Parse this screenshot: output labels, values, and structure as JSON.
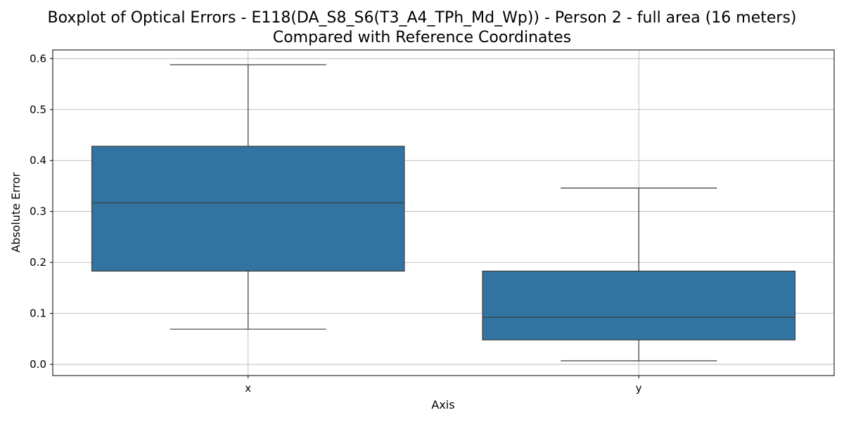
{
  "chart_data": {
    "type": "box",
    "title_lines": [
      "Boxplot of Optical Errors - E118(DA_S8_S6(T3_A4_TPh_Md_Wp)) - Person 2 - full area (16 meters)",
      "Compared with Reference Coordinates"
    ],
    "xlabel": "Axis",
    "ylabel": "Absolute Error",
    "categories": [
      "x",
      "y"
    ],
    "ylim": [
      -0.022,
      0.617
    ],
    "yticks": [
      0.0,
      0.1,
      0.2,
      0.3,
      0.4,
      0.5,
      0.6
    ],
    "ytick_labels": [
      "0.0",
      "0.1",
      "0.2",
      "0.3",
      "0.4",
      "0.5",
      "0.6"
    ],
    "grid": true,
    "box_color": "#3274a1",
    "line_color": "#3d3d3d",
    "boxes": [
      {
        "category": "x",
        "whisker_low": 0.069,
        "q1": 0.183,
        "median": 0.317,
        "q3": 0.428,
        "whisker_high": 0.588
      },
      {
        "category": "y",
        "whisker_low": 0.007,
        "q1": 0.048,
        "median": 0.092,
        "q3": 0.183,
        "whisker_high": 0.346
      }
    ]
  }
}
